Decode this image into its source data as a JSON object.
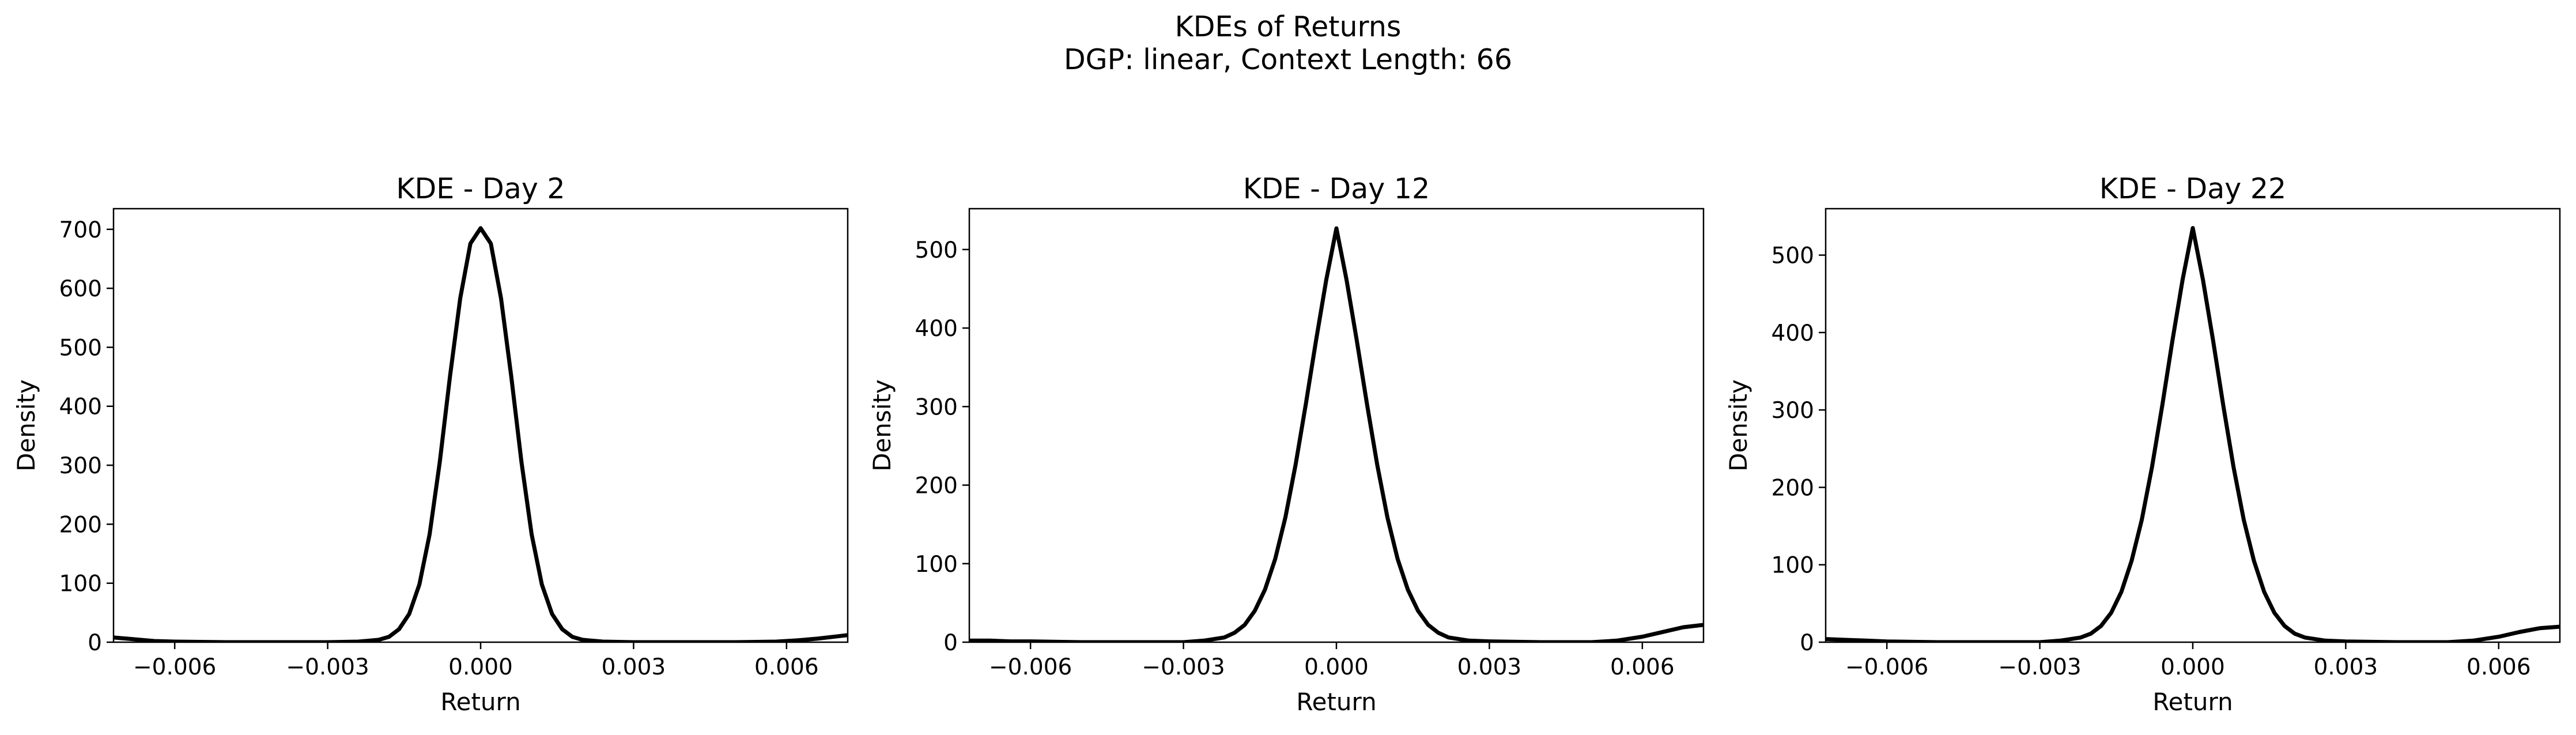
{
  "figure": {
    "title_line1": "KDEs of Returns",
    "title_line2": "DGP: linear, Context Length: 66"
  },
  "chart_data": [
    {
      "type": "line",
      "title": "KDE - Day 2",
      "xlabel": "Return",
      "ylabel": "Density",
      "xlim": [
        -0.0072,
        0.0072
      ],
      "ylim": [
        0,
        735
      ],
      "xticks": [
        -0.006,
        -0.003,
        0.0,
        0.003,
        0.006
      ],
      "xtick_labels": [
        "−0.006",
        "−0.003",
        "0.000",
        "0.003",
        "0.006"
      ],
      "yticks": [
        0,
        100,
        200,
        300,
        400,
        500,
        600,
        700
      ],
      "ytick_labels": [
        "0",
        "100",
        "200",
        "300",
        "400",
        "500",
        "600",
        "700"
      ],
      "grid": false,
      "color": "#000000",
      "series": [
        {
          "x": [
            -0.0072,
            -0.0068,
            -0.0064,
            -0.006,
            -0.005,
            -0.004,
            -0.003,
            -0.0024,
            -0.002,
            -0.0018,
            -0.0016,
            -0.0014,
            -0.0012,
            -0.001,
            -0.0008,
            -0.0006,
            -0.0004,
            -0.0002,
            0.0,
            0.0002,
            0.0004,
            0.0006,
            0.0008,
            0.001,
            0.0012,
            0.0014,
            0.0016,
            0.0018,
            0.002,
            0.0024,
            0.003,
            0.004,
            0.005,
            0.0058,
            0.0062,
            0.0066,
            0.007,
            0.0072
          ],
          "y": [
            8,
            5,
            2,
            1,
            0,
            0,
            0,
            1,
            4,
            9,
            22,
            48,
            98,
            183,
            306,
            451,
            583,
            676,
            702,
            676,
            583,
            451,
            306,
            183,
            98,
            48,
            22,
            9,
            4,
            1,
            0,
            0,
            0,
            1,
            3,
            6,
            10,
            12
          ]
        }
      ]
    },
    {
      "type": "line",
      "title": "KDE - Day 12",
      "xlabel": "Return",
      "ylabel": "Density",
      "xlim": [
        -0.0072,
        0.0072
      ],
      "ylim": [
        0,
        552
      ],
      "xticks": [
        -0.006,
        -0.003,
        0.0,
        0.003,
        0.006
      ],
      "xtick_labels": [
        "−0.006",
        "−0.003",
        "0.000",
        "0.003",
        "0.006"
      ],
      "yticks": [
        0,
        100,
        200,
        300,
        400,
        500
      ],
      "ytick_labels": [
        "0",
        "100",
        "200",
        "300",
        "400",
        "500"
      ],
      "grid": false,
      "color": "#000000",
      "series": [
        {
          "x": [
            -0.0072,
            -0.0068,
            -0.0064,
            -0.006,
            -0.005,
            -0.004,
            -0.003,
            -0.0026,
            -0.0022,
            -0.002,
            -0.0018,
            -0.0016,
            -0.0014,
            -0.0012,
            -0.001,
            -0.0008,
            -0.0006,
            -0.0004,
            -0.0002,
            0.0,
            0.0002,
            0.0004,
            0.0006,
            0.0008,
            0.001,
            0.0012,
            0.0014,
            0.0016,
            0.0018,
            0.002,
            0.0022,
            0.0026,
            0.003,
            0.004,
            0.005,
            0.0055,
            0.006,
            0.0064,
            0.0068,
            0.0072
          ],
          "y": [
            2,
            2,
            1,
            1,
            0,
            0,
            0,
            2,
            6,
            12,
            22,
            40,
            67,
            106,
            159,
            226,
            303,
            384,
            461,
            527,
            461,
            384,
            303,
            226,
            159,
            106,
            67,
            40,
            22,
            12,
            6,
            2,
            1,
            0,
            0,
            2,
            7,
            13,
            19,
            22
          ]
        }
      ]
    },
    {
      "type": "line",
      "title": "KDE - Day 22",
      "xlabel": "Return",
      "ylabel": "Density",
      "xlim": [
        -0.0072,
        0.0072
      ],
      "ylim": [
        0,
        560
      ],
      "xticks": [
        -0.006,
        -0.003,
        0.0,
        0.003,
        0.006
      ],
      "xtick_labels": [
        "−0.006",
        "−0.003",
        "0.000",
        "0.003",
        "0.006"
      ],
      "yticks": [
        0,
        100,
        200,
        300,
        400,
        500
      ],
      "ytick_labels": [
        "0",
        "100",
        "200",
        "300",
        "400",
        "500"
      ],
      "grid": false,
      "color": "#000000",
      "series": [
        {
          "x": [
            -0.0072,
            -0.0068,
            -0.0064,
            -0.006,
            -0.005,
            -0.004,
            -0.003,
            -0.0026,
            -0.0022,
            -0.002,
            -0.0018,
            -0.0016,
            -0.0014,
            -0.0012,
            -0.001,
            -0.0008,
            -0.0006,
            -0.0004,
            -0.0002,
            0.0,
            0.0002,
            0.0004,
            0.0006,
            0.0008,
            0.001,
            0.0012,
            0.0014,
            0.0016,
            0.0018,
            0.002,
            0.0022,
            0.0026,
            0.003,
            0.004,
            0.005,
            0.0055,
            0.006,
            0.0064,
            0.0068,
            0.0072
          ],
          "y": [
            4,
            3,
            2,
            1,
            0,
            0,
            0,
            2,
            6,
            11,
            21,
            38,
            65,
            105,
            158,
            226,
            305,
            389,
            468,
            535,
            468,
            389,
            305,
            226,
            158,
            105,
            65,
            38,
            21,
            11,
            6,
            2,
            1,
            0,
            0,
            2,
            7,
            13,
            18,
            20
          ]
        }
      ]
    }
  ]
}
